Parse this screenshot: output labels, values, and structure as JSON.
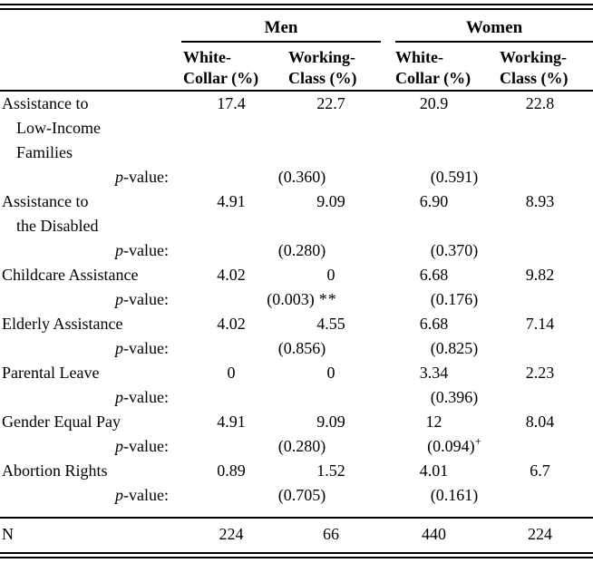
{
  "table": {
    "groups": [
      {
        "label": "Men"
      },
      {
        "label": "Women"
      }
    ],
    "subheaders": [
      {
        "key": "men-white-collar",
        "lines": [
          "White-",
          "Collar (%)"
        ]
      },
      {
        "key": "men-working-class",
        "lines": [
          "Working-",
          "Class (%)"
        ]
      },
      {
        "key": "women-white-collar",
        "lines": [
          "White-",
          "Collar (%)"
        ]
      },
      {
        "key": "women-working-class",
        "lines": [
          "Working-",
          "Class (%)"
        ]
      }
    ],
    "pvalue_label": {
      "italic": "p",
      "rest": "-value:"
    },
    "rows": [
      {
        "label_lines": [
          "Assistance to",
          "Low-Income",
          "Families"
        ],
        "values": [
          "17.4",
          "22.7",
          "20.9",
          "22.8"
        ],
        "p_men": "(0.360)",
        "p_men_sig": "",
        "p_women": "(0.591)",
        "p_women_sig": ""
      },
      {
        "label_lines": [
          "Assistance to",
          "the Disabled"
        ],
        "values": [
          "4.91",
          "9.09",
          "6.90",
          "8.93"
        ],
        "p_men": "(0.280)",
        "p_men_sig": "",
        "p_women": "(0.370)",
        "p_women_sig": ""
      },
      {
        "label_lines": [
          "Childcare Assistance"
        ],
        "values": [
          "4.02",
          "0",
          "6.68",
          "9.82"
        ],
        "p_men": "(0.003)",
        "p_men_sig": "**",
        "p_women": "(0.176)",
        "p_women_sig": ""
      },
      {
        "label_lines": [
          "Elderly Assistance"
        ],
        "values": [
          "4.02",
          "4.55",
          "6.68",
          "7.14"
        ],
        "p_men": "(0.856)",
        "p_men_sig": "",
        "p_women": "(0.825)",
        "p_women_sig": ""
      },
      {
        "label_lines": [
          "Parental Leave"
        ],
        "values": [
          "0",
          "0",
          "3.34",
          "2.23"
        ],
        "p_men": "",
        "p_men_sig": "",
        "p_women": "(0.396)",
        "p_women_sig": ""
      },
      {
        "label_lines": [
          "Gender Equal Pay"
        ],
        "values": [
          "4.91",
          "9.09",
          "12",
          "8.04"
        ],
        "p_men": "(0.280)",
        "p_men_sig": "",
        "p_women": "(0.094)",
        "p_women_sig": "+"
      },
      {
        "label_lines": [
          "Abortion Rights"
        ],
        "values": [
          "0.89",
          "1.52",
          "4.01",
          "6.7"
        ],
        "p_men": "(0.705)",
        "p_men_sig": "",
        "p_women": "(0.161)",
        "p_women_sig": ""
      }
    ],
    "n_row": {
      "label": "N",
      "values": [
        "224",
        "66",
        "440",
        "224"
      ]
    }
  }
}
